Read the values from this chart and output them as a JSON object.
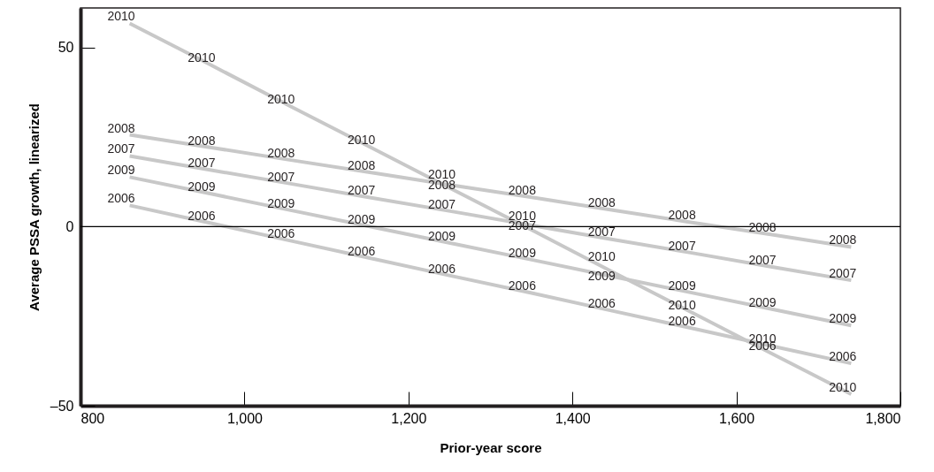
{
  "chart_data": {
    "type": "line",
    "xlabel": "Prior-year score",
    "ylabel": "Average PSSA growth, linearized",
    "x": [
      860,
      958,
      1055,
      1153,
      1251,
      1349,
      1446,
      1544,
      1642,
      1740
    ],
    "series": [
      {
        "name": "2010",
        "color": "#c8c8c8",
        "values": [
          56.7,
          45.2,
          33.7,
          22.2,
          10.7,
          -0.8,
          -12.3,
          -23.8,
          -35.3,
          -46.8
        ]
      },
      {
        "name": "2008",
        "color": "#c8c8c8",
        "values": [
          25.6,
          22.1,
          18.6,
          15.1,
          11.6,
          8.2,
          4.7,
          1.2,
          -2.2,
          -5.7
        ]
      },
      {
        "name": "2007",
        "color": "#c8c8c8",
        "values": [
          19.7,
          15.8,
          12.0,
          8.1,
          4.3,
          0.4,
          -3.5,
          -7.3,
          -11.2,
          -15.0
        ]
      },
      {
        "name": "2009",
        "color": "#c8c8c8",
        "values": [
          13.8,
          9.2,
          4.6,
          0.0,
          -4.6,
          -9.2,
          -13.8,
          -18.4,
          -23.0,
          -27.6
        ]
      },
      {
        "name": "2006",
        "color": "#c8c8c8",
        "values": [
          5.9,
          1.0,
          -3.9,
          -8.8,
          -13.7,
          -18.5,
          -23.4,
          -28.3,
          -33.3,
          -38.2
        ]
      }
    ],
    "xlim": [
      800,
      1800
    ],
    "xticks": [
      800,
      {
        "value": 1000,
        "label": "1,000"
      },
      {
        "value": 1200,
        "label": "1,200"
      },
      {
        "value": 1400,
        "label": "1,400"
      },
      {
        "value": 1600,
        "label": "1,600"
      },
      {
        "value": 1800,
        "label": "1,800"
      }
    ],
    "ylim": [
      -50,
      61
    ],
    "yticks": [
      {
        "value": -50,
        "label": "–50"
      },
      0,
      50
    ],
    "ref_lines": [
      {
        "axis": "y",
        "value": 0,
        "color": "#000000"
      }
    ],
    "grid": false,
    "marker": "none",
    "line_style": "solid"
  }
}
